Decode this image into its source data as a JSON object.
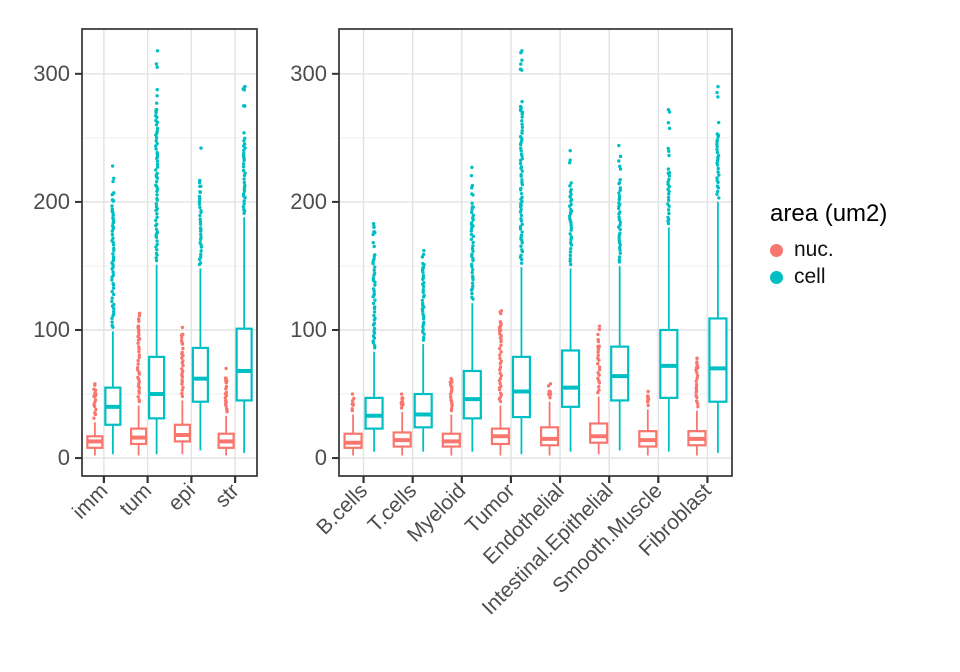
{
  "legend": {
    "title": "area (um2)",
    "items": [
      {
        "label": "nuc.",
        "color": "#F8766D"
      },
      {
        "label": "cell",
        "color": "#00BFC4"
      }
    ]
  },
  "chart_data": {
    "type": "boxplot",
    "title": "",
    "xlabel": "",
    "ylabel": "",
    "legend_position": "right",
    "grid": "major-and-minor",
    "y_axis": {
      "ticks": [
        0,
        100,
        200,
        300
      ],
      "minor": [
        50,
        150,
        250
      ],
      "range": [
        -14,
        335
      ]
    },
    "series_colors": {
      "nuc": "#F8766D",
      "cell": "#00BFC4"
    },
    "series_order": [
      "nuc",
      "cell"
    ],
    "panels": [
      {
        "id": "compartment",
        "categories": [
          "imm",
          "tum",
          "epi",
          "str"
        ],
        "data": {
          "imm": {
            "nuc": {
              "whisker_low": 2,
              "q1": 8,
              "median": 13,
              "q3": 17,
              "whisker_high": 28,
              "outliers_dense_to": 48,
              "outlier_max": 58
            },
            "cell": {
              "whisker_low": 3,
              "q1": 26,
              "median": 40,
              "q3": 55,
              "whisker_high": 99,
              "outliers_dense_to": 195,
              "outlier_max": 228
            }
          },
          "tum": {
            "nuc": {
              "whisker_low": 2,
              "q1": 11,
              "median": 16,
              "q3": 23,
              "whisker_high": 41,
              "outliers_dense_to": 100,
              "outlier_max": 113
            },
            "cell": {
              "whisker_low": 3,
              "q1": 31,
              "median": 50,
              "q3": 79,
              "whisker_high": 151,
              "outliers_dense_to": 272,
              "outlier_max": 318
            }
          },
          "epi": {
            "nuc": {
              "whisker_low": 3,
              "q1": 13,
              "median": 18,
              "q3": 26,
              "whisker_high": 45,
              "outliers_dense_to": 88,
              "outlier_max": 102
            },
            "cell": {
              "whisker_low": 6,
              "q1": 44,
              "median": 62,
              "q3": 86,
              "whisker_high": 148,
              "outliers_dense_to": 207,
              "outlier_max": 242
            }
          },
          "str": {
            "nuc": {
              "whisker_low": 2,
              "q1": 8,
              "median": 13,
              "q3": 19,
              "whisker_high": 33,
              "outliers_dense_to": 60,
              "outlier_max": 70
            },
            "cell": {
              "whisker_low": 4,
              "q1": 45,
              "median": 68,
              "q3": 101,
              "whisker_high": 188,
              "outliers_dense_to": 252,
              "outlier_max": 290
            }
          }
        }
      },
      {
        "id": "celltype",
        "categories": [
          "B.cells",
          "T.cells",
          "Myeloid",
          "Tumor",
          "Endothelial",
          "Intestinal.Epithelial",
          "Smooth.Muscle",
          "Fibroblast"
        ],
        "data": {
          "B.cells": {
            "nuc": {
              "whisker_low": 2,
              "q1": 8,
              "median": 12,
              "q3": 19,
              "whisker_high": 34,
              "outliers_dense_to": 42,
              "outlier_max": 50
            },
            "cell": {
              "whisker_low": 5,
              "q1": 23,
              "median": 33,
              "q3": 47,
              "whisker_high": 83,
              "outliers_dense_to": 158,
              "outlier_max": 183
            }
          },
          "T.cells": {
            "nuc": {
              "whisker_low": 2,
              "q1": 9,
              "median": 14,
              "q3": 20,
              "whisker_high": 36,
              "outliers_dense_to": 42,
              "outlier_max": 50
            },
            "cell": {
              "whisker_low": 5,
              "q1": 24,
              "median": 34,
              "q3": 50,
              "whisker_high": 89,
              "outliers_dense_to": 148,
              "outlier_max": 162
            }
          },
          "Myeloid": {
            "nuc": {
              "whisker_low": 2,
              "q1": 9,
              "median": 13,
              "q3": 19,
              "whisker_high": 34,
              "outliers_dense_to": 55,
              "outlier_max": 62
            },
            "cell": {
              "whisker_low": 5,
              "q1": 31,
              "median": 46,
              "q3": 68,
              "whisker_high": 121,
              "outliers_dense_to": 196,
              "outlier_max": 227
            }
          },
          "Tumor": {
            "nuc": {
              "whisker_low": 2,
              "q1": 11,
              "median": 17,
              "q3": 23,
              "whisker_high": 41,
              "outliers_dense_to": 100,
              "outlier_max": 115
            },
            "cell": {
              "whisker_low": 3,
              "q1": 32,
              "median": 52,
              "q3": 79,
              "whisker_high": 149,
              "outliers_dense_to": 272,
              "outlier_max": 318
            }
          },
          "Endothelial": {
            "nuc": {
              "whisker_low": 2,
              "q1": 10,
              "median": 15,
              "q3": 24,
              "whisker_high": 44,
              "outliers_dense_to": 50,
              "outlier_max": 58
            },
            "cell": {
              "whisker_low": 5,
              "q1": 40,
              "median": 55,
              "q3": 84,
              "whisker_high": 148,
              "outliers_dense_to": 203,
              "outlier_max": 240
            }
          },
          "Intestinal.Epithelial": {
            "nuc": {
              "whisker_low": 3,
              "q1": 12,
              "median": 17,
              "q3": 27,
              "whisker_high": 48,
              "outliers_dense_to": 87,
              "outlier_max": 103
            },
            "cell": {
              "whisker_low": 6,
              "q1": 45,
              "median": 64,
              "q3": 87,
              "whisker_high": 150,
              "outliers_dense_to": 210,
              "outlier_max": 244
            }
          },
          "Smooth.Muscle": {
            "nuc": {
              "whisker_low": 2,
              "q1": 9,
              "median": 14,
              "q3": 21,
              "whisker_high": 38,
              "outliers_dense_to": 45,
              "outlier_max": 52
            },
            "cell": {
              "whisker_low": 5,
              "q1": 47,
              "median": 72,
              "q3": 100,
              "whisker_high": 180,
              "outliers_dense_to": 222,
              "outlier_max": 272
            }
          },
          "Fibroblast": {
            "nuc": {
              "whisker_low": 2,
              "q1": 10,
              "median": 15,
              "q3": 21,
              "whisker_high": 37,
              "outliers_dense_to": 70,
              "outlier_max": 78
            },
            "cell": {
              "whisker_low": 4,
              "q1": 44,
              "median": 70,
              "q3": 109,
              "whisker_high": 200,
              "outliers_dense_to": 252,
              "outlier_max": 290
            }
          }
        }
      }
    ]
  }
}
